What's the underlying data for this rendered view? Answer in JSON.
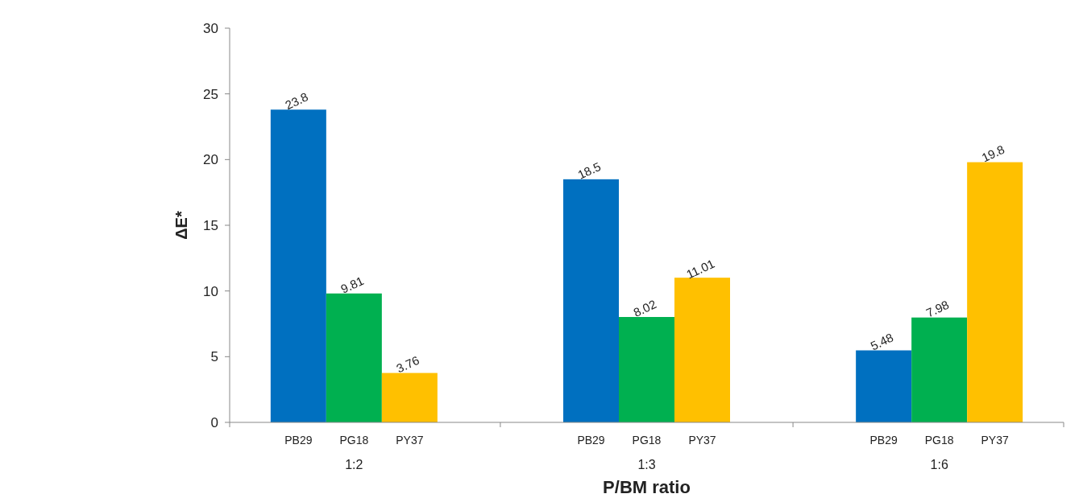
{
  "chart_data": {
    "type": "bar",
    "xlabel": "P/BM ratio",
    "ylabel": "ΔE*",
    "categories": [
      "1:2",
      "1:3",
      "1:6"
    ],
    "series": [
      {
        "name": "PB29",
        "color": "#0070c0",
        "values": [
          23.8,
          18.5,
          5.48
        ]
      },
      {
        "name": "PG18",
        "color": "#00b050",
        "values": [
          9.81,
          8.02,
          7.98
        ]
      },
      {
        "name": "PY37",
        "color": "#ffc000",
        "values": [
          3.76,
          11.01,
          19.8
        ]
      }
    ],
    "ylim": [
      0,
      30
    ],
    "yticks": [
      0,
      5,
      10,
      15,
      20,
      25,
      30
    ],
    "data_labels": true
  }
}
